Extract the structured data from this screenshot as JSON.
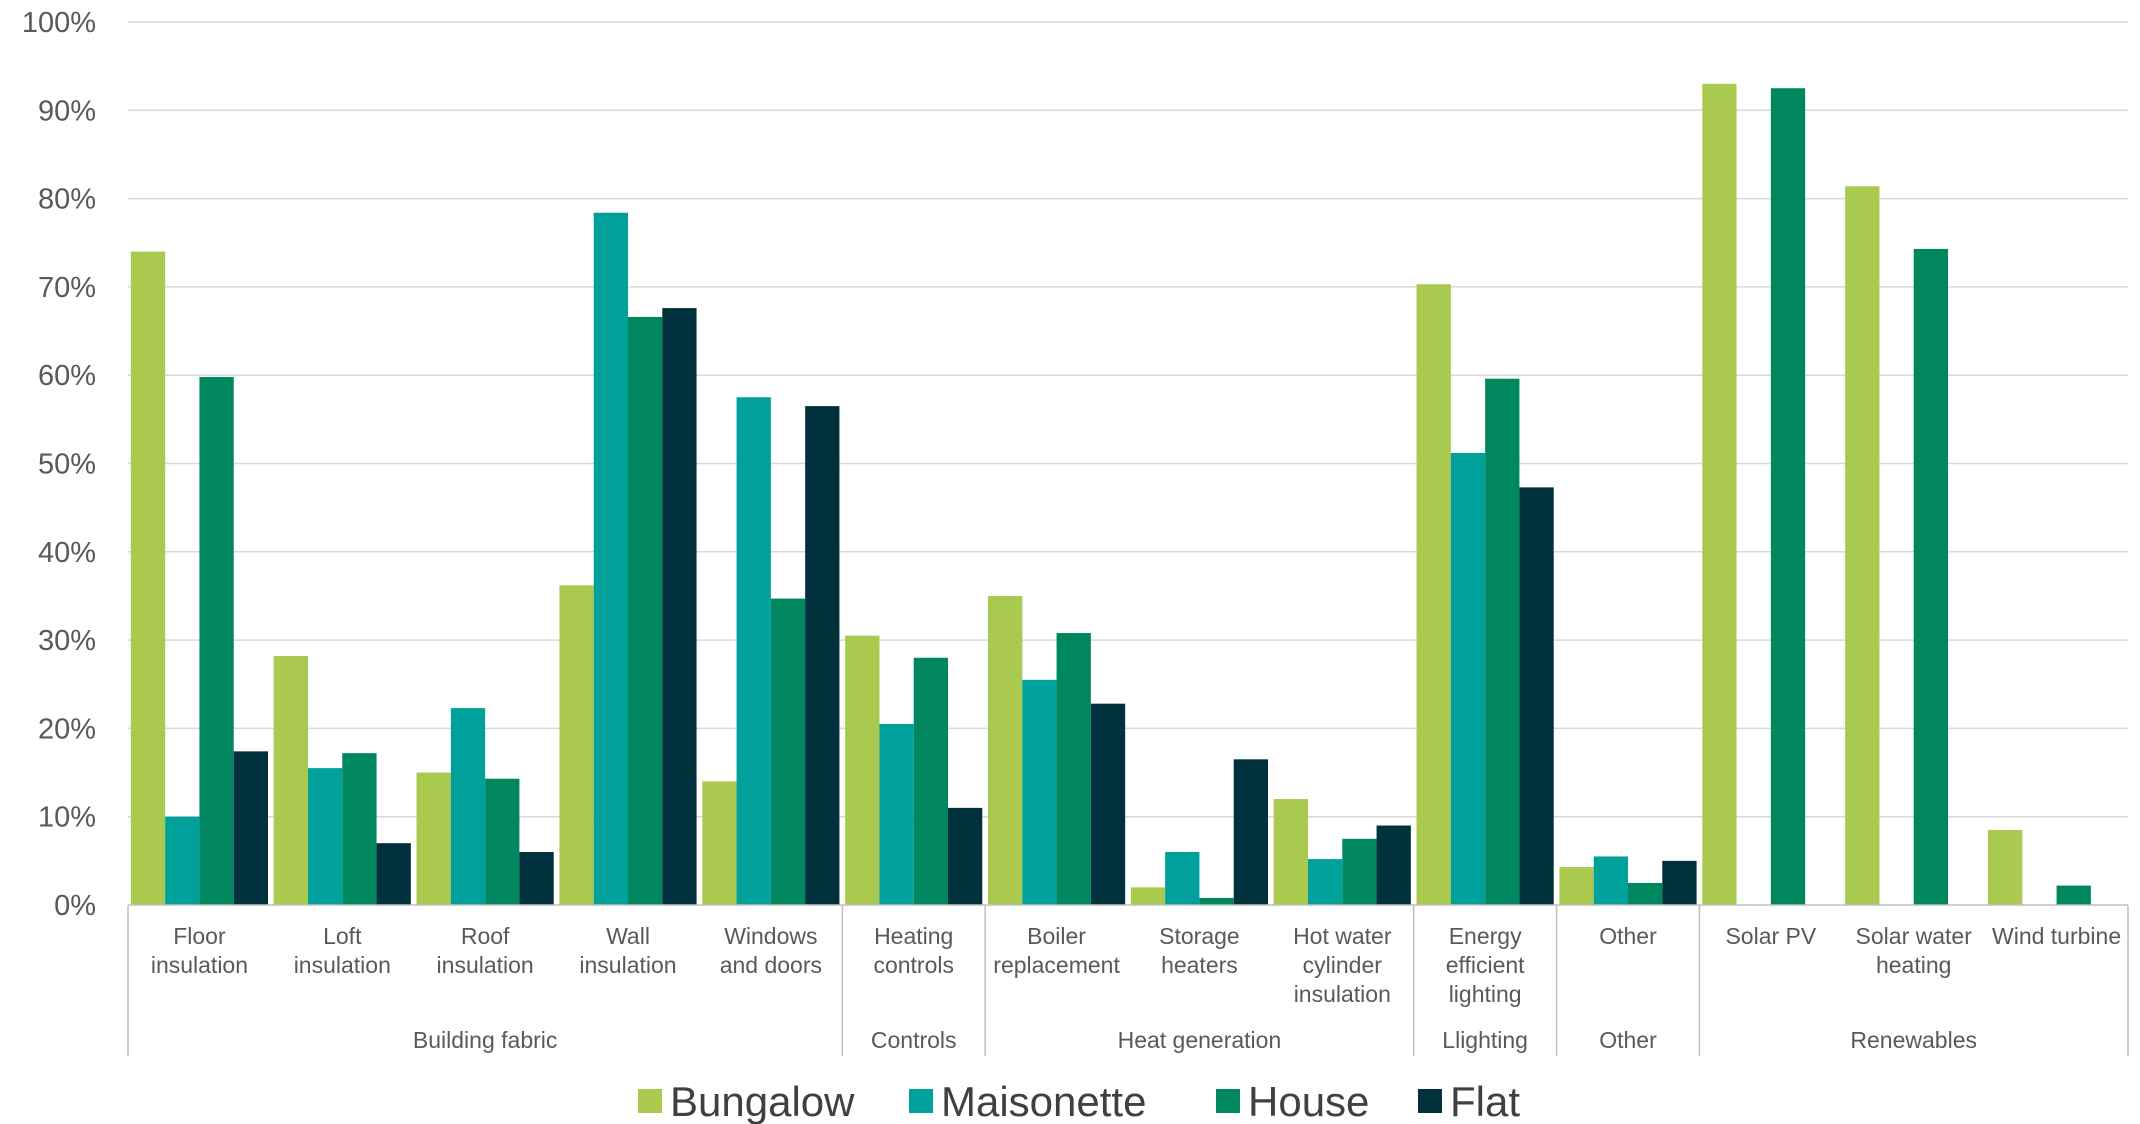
{
  "chart_data": {
    "type": "bar",
    "title": "",
    "xlabel": "",
    "ylabel": "",
    "ylim": [
      0,
      100
    ],
    "yticks": [
      "0%",
      "10%",
      "20%",
      "30%",
      "40%",
      "50%",
      "60%",
      "70%",
      "80%",
      "90%",
      "100%"
    ],
    "grid": true,
    "legend_position": "bottom",
    "categories": [
      [
        "Floor",
        "insulation"
      ],
      [
        "Loft",
        "insulation"
      ],
      [
        "Roof",
        "insulation"
      ],
      [
        "Wall",
        "insulation"
      ],
      [
        "Windows",
        "and doors"
      ],
      [
        "Heating",
        "controls"
      ],
      [
        "Boiler",
        "replacement"
      ],
      [
        "Storage",
        "heaters"
      ],
      [
        "Hot water",
        "cylinder",
        "insulation"
      ],
      [
        "Energy",
        "efficient",
        "lighting"
      ],
      [
        "Other"
      ],
      [
        "Solar PV"
      ],
      [
        "Solar water",
        "heating"
      ],
      [
        "Wind turbine"
      ]
    ],
    "groups": [
      {
        "label": "Building fabric",
        "count": 5
      },
      {
        "label": "Controls",
        "count": 1
      },
      {
        "label": "Heat generation",
        "count": 3
      },
      {
        "label": "Llighting",
        "count": 1
      },
      {
        "label": "Other",
        "count": 1
      },
      {
        "label": "Renewables",
        "count": 3
      }
    ],
    "series": [
      {
        "name": "Bungalow",
        "color": "#a9c94f",
        "values": [
          74,
          28.2,
          15,
          36.2,
          14,
          30.5,
          35,
          2,
          12,
          70.3,
          4.3,
          93,
          81.4,
          8.5
        ]
      },
      {
        "name": "Maisonette",
        "color": "#00a19a",
        "values": [
          10,
          15.5,
          22.3,
          78.4,
          57.5,
          20.5,
          25.5,
          6,
          5.2,
          51.2,
          5.5,
          null,
          null,
          null
        ]
      },
      {
        "name": "House",
        "color": "#00875f",
        "values": [
          59.8,
          17.2,
          14.3,
          66.6,
          34.7,
          28,
          30.8,
          0.8,
          7.5,
          59.6,
          2.5,
          92.5,
          74.3,
          2.2
        ]
      },
      {
        "name": "Flat",
        "color": "#01313c",
        "values": [
          17.4,
          7,
          6,
          67.6,
          56.5,
          11,
          22.8,
          16.5,
          9,
          47.3,
          5,
          null,
          null,
          null
        ]
      }
    ]
  }
}
